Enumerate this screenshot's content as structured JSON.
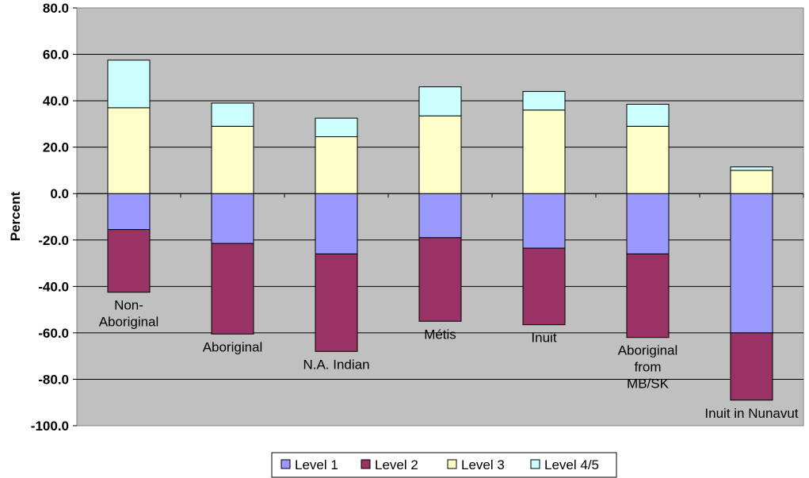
{
  "chart_data": {
    "type": "bar",
    "stacked": "diverging",
    "ylabel": "Percent",
    "ylim": [
      -100,
      80
    ],
    "yticks": [
      "80.0",
      "60.0",
      "40.0",
      "20.0",
      "0.0",
      "-20.0",
      "-40.0",
      "-60.0",
      "-80.0",
      "-100.0"
    ],
    "grid": true,
    "legend": "bottom",
    "categories": [
      [
        "Non-",
        "Aboriginal"
      ],
      [
        "Aboriginal"
      ],
      [
        "N.A. Indian"
      ],
      [
        "Métis"
      ],
      [
        "Inuit"
      ],
      [
        "Aboriginal",
        "from",
        "MB/SK"
      ],
      [
        "Inuit in Nunavut"
      ]
    ],
    "series": [
      {
        "name": "Level 1",
        "color": "#9999ff",
        "values": [
          -15.5,
          -21.5,
          -26.0,
          -19.0,
          -23.5,
          -26.0,
          -60.0
        ]
      },
      {
        "name": "Level 2",
        "color": "#993366",
        "values": [
          -27.0,
          -39.0,
          -42.0,
          -36.0,
          -33.0,
          -36.0,
          -29.0
        ]
      },
      {
        "name": "Level 3",
        "color": "#ffffcc",
        "values": [
          37.0,
          29.0,
          24.5,
          33.5,
          36.0,
          29.0,
          10.0
        ]
      },
      {
        "name": "Level 4/5",
        "color": "#ccffff",
        "values": [
          20.5,
          10.0,
          8.0,
          12.5,
          8.0,
          9.5,
          1.5
        ]
      }
    ]
  }
}
